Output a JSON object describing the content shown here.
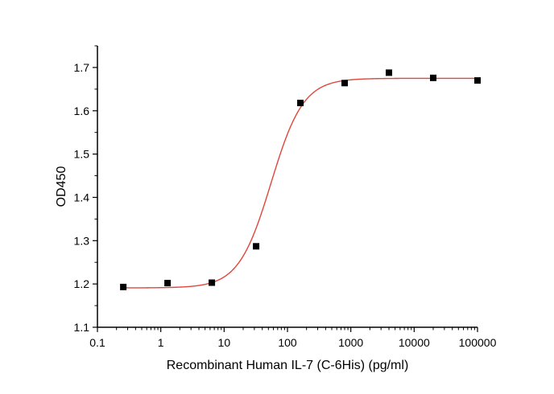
{
  "chart_data": {
    "type": "scatter",
    "title": "",
    "xlabel": "Recombinant Human IL-7 (C-6His) (pg/ml)",
    "ylabel": "OD450",
    "xscale": "log",
    "xlim": [
      0.1,
      100000
    ],
    "ylim": [
      1.1,
      1.75
    ],
    "x_ticks": [
      0.1,
      1,
      10,
      100,
      1000,
      10000,
      100000
    ],
    "x_tick_labels": [
      "0.1",
      "1",
      "10",
      "100",
      "1000",
      "10000",
      "100000"
    ],
    "y_ticks": [
      1.1,
      1.2,
      1.3,
      1.4,
      1.5,
      1.6,
      1.7
    ],
    "y_tick_labels": [
      "1.1",
      "1.2",
      "1.3",
      "1.4",
      "1.5",
      "1.6",
      "1.7"
    ],
    "grid": false,
    "legend": "none",
    "series": [
      {
        "marker": "square",
        "color": "#000000",
        "x": [
          0.256,
          1.28,
          6.4,
          32,
          160,
          800,
          4000,
          20000,
          100000
        ],
        "y": [
          1.193,
          1.202,
          1.203,
          1.287,
          1.618,
          1.664,
          1.688,
          1.676,
          1.67
        ]
      }
    ],
    "fit_curve": {
      "model": "4PL",
      "color": "#e0463c",
      "bottom": 1.191,
      "top": 1.675,
      "ec50": 55,
      "hill": 1.7
    }
  }
}
